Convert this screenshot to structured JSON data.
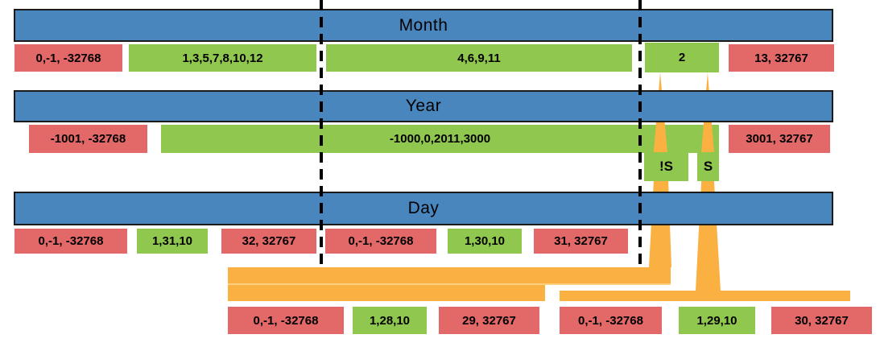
{
  "colors": {
    "bar_blue": "#4A86BE",
    "valid_green": "#90C74E",
    "invalid_red": "#E26968",
    "connector_orange": "#FBB042",
    "connector_orange_light": "#FDCF7F",
    "bar_border": "#1A1A1A",
    "text": "#000000"
  },
  "month": {
    "title": "Month",
    "invalid_low": "0,-1, -32768",
    "months_with_31_days": "1,3,5,7,8,10,12",
    "months_with_30_days": "4,6,9,11",
    "february": "2",
    "invalid_high": "13, 32767"
  },
  "year": {
    "title": "Year",
    "invalid_low": "-1001, -32768",
    "valid": "-1000,0,2011,3000",
    "invalid_high": "3001, 32767",
    "not_leap_label": "!S",
    "leap_label": "S"
  },
  "day": {
    "title": "Day",
    "group_31_day_months": {
      "invalid_low": "0,-1, -32768",
      "valid": "1,31,10",
      "invalid_high": "32, 32767"
    },
    "group_30_day_months": {
      "invalid_low": "0,-1, -32768",
      "valid": "1,30,10",
      "invalid_high": "31, 32767"
    },
    "group_feb_non_leap": {
      "invalid_low": "0,-1, -32768",
      "valid": "1,28,10",
      "invalid_high": "29, 32767"
    },
    "group_feb_leap": {
      "invalid_low": "0,-1, -32768",
      "valid": "1,29,10",
      "invalid_high": "30, 32767"
    }
  }
}
